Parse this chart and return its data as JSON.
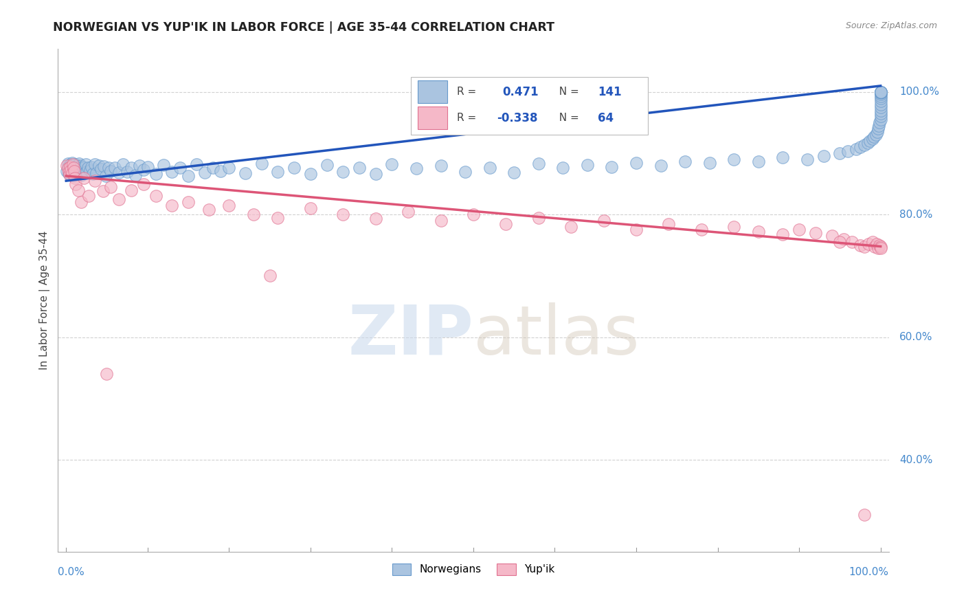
{
  "title": "NORWEGIAN VS YUP'IK IN LABOR FORCE | AGE 35-44 CORRELATION CHART",
  "source": "Source: ZipAtlas.com",
  "ylabel": "In Labor Force | Age 35-44",
  "watermark_zip": "ZIP",
  "watermark_atlas": "atlas",
  "legend_nor_R": "0.471",
  "legend_nor_N": "141",
  "legend_yup_R": "-0.338",
  "legend_yup_N": "64",
  "norwegian_color_edge": "#6699cc",
  "norwegian_color_fill": "#aac4e0",
  "yupik_color_edge": "#e07090",
  "yupik_color_fill": "#f5b8c8",
  "trend_blue": "#2255bb",
  "trend_pink": "#dd5577",
  "background": "#ffffff",
  "grid_color": "#cccccc",
  "title_color": "#222222",
  "axis_label_color": "#4488cc",
  "ylabel_color": "#444444",
  "xlim": [
    0.0,
    1.0
  ],
  "ylim": [
    0.25,
    1.07
  ],
  "y_ticks": [
    0.4,
    0.6,
    0.8,
    1.0
  ],
  "y_tick_labels": [
    "40.0%",
    "60.0%",
    "80.0%",
    "100.0%"
  ],
  "x_tick_labels_left": "0.0%",
  "x_tick_labels_right": "100.0%",
  "blue_line_x0": 0.0,
  "blue_line_x1": 1.0,
  "blue_line_y0": 0.855,
  "blue_line_y1": 1.01,
  "pink_line_x0": 0.0,
  "pink_line_x1": 1.0,
  "pink_line_y0": 0.863,
  "pink_line_y1": 0.748,
  "nor_x": [
    0.001,
    0.002,
    0.002,
    0.003,
    0.003,
    0.003,
    0.004,
    0.004,
    0.004,
    0.005,
    0.005,
    0.005,
    0.006,
    0.006,
    0.006,
    0.006,
    0.007,
    0.007,
    0.007,
    0.008,
    0.008,
    0.008,
    0.009,
    0.009,
    0.009,
    0.01,
    0.01,
    0.01,
    0.011,
    0.011,
    0.012,
    0.012,
    0.013,
    0.013,
    0.014,
    0.014,
    0.015,
    0.015,
    0.016,
    0.016,
    0.017,
    0.017,
    0.018,
    0.018,
    0.019,
    0.02,
    0.021,
    0.022,
    0.023,
    0.024,
    0.025,
    0.027,
    0.029,
    0.031,
    0.033,
    0.035,
    0.037,
    0.04,
    0.043,
    0.046,
    0.049,
    0.052,
    0.055,
    0.06,
    0.065,
    0.07,
    0.075,
    0.08,
    0.085,
    0.09,
    0.095,
    0.1,
    0.11,
    0.12,
    0.13,
    0.14,
    0.15,
    0.16,
    0.17,
    0.18,
    0.19,
    0.2,
    0.22,
    0.24,
    0.26,
    0.28,
    0.3,
    0.32,
    0.34,
    0.36,
    0.38,
    0.4,
    0.43,
    0.46,
    0.49,
    0.52,
    0.55,
    0.58,
    0.61,
    0.64,
    0.67,
    0.7,
    0.73,
    0.76,
    0.79,
    0.82,
    0.85,
    0.88,
    0.91,
    0.93,
    0.95,
    0.96,
    0.97,
    0.975,
    0.98,
    0.984,
    0.987,
    0.99,
    0.992,
    0.994,
    0.996,
    0.997,
    0.998,
    0.999,
    1.0,
    1.0,
    1.0,
    1.0,
    1.0,
    1.0,
    1.0,
    1.0,
    1.0,
    1.0,
    1.0,
    1.0,
    1.0,
    1.0,
    1.0,
    1.0,
    1.0
  ],
  "nor_y": [
    0.871,
    0.883,
    0.876,
    0.868,
    0.88,
    0.875,
    0.872,
    0.879,
    0.866,
    0.874,
    0.881,
    0.869,
    0.877,
    0.873,
    0.865,
    0.882,
    0.87,
    0.878,
    0.884,
    0.867,
    0.875,
    0.871,
    0.879,
    0.863,
    0.876,
    0.872,
    0.88,
    0.868,
    0.874,
    0.882,
    0.866,
    0.878,
    0.87,
    0.876,
    0.864,
    0.88,
    0.872,
    0.879,
    0.866,
    0.883,
    0.87,
    0.876,
    0.864,
    0.88,
    0.873,
    0.878,
    0.871,
    0.876,
    0.868,
    0.882,
    0.87,
    0.876,
    0.872,
    0.878,
    0.866,
    0.882,
    0.868,
    0.88,
    0.874,
    0.879,
    0.863,
    0.877,
    0.871,
    0.876,
    0.869,
    0.882,
    0.87,
    0.876,
    0.864,
    0.88,
    0.873,
    0.878,
    0.866,
    0.881,
    0.87,
    0.876,
    0.863,
    0.882,
    0.869,
    0.877,
    0.871,
    0.876,
    0.868,
    0.883,
    0.87,
    0.876,
    0.866,
    0.881,
    0.87,
    0.877,
    0.866,
    0.882,
    0.875,
    0.88,
    0.87,
    0.876,
    0.869,
    0.883,
    0.876,
    0.881,
    0.878,
    0.884,
    0.88,
    0.887,
    0.884,
    0.89,
    0.887,
    0.893,
    0.89,
    0.895,
    0.9,
    0.903,
    0.907,
    0.91,
    0.913,
    0.917,
    0.92,
    0.923,
    0.927,
    0.93,
    0.935,
    0.94,
    0.945,
    0.95,
    0.955,
    0.96,
    0.965,
    0.97,
    0.975,
    0.98,
    0.985,
    0.99,
    0.993,
    0.996,
    0.999,
    1.0,
    1.0,
    1.0,
    1.0,
    1.0,
    1.0
  ],
  "yup_x": [
    0.001,
    0.002,
    0.003,
    0.004,
    0.005,
    0.006,
    0.007,
    0.008,
    0.009,
    0.01,
    0.011,
    0.012,
    0.015,
    0.018,
    0.022,
    0.028,
    0.035,
    0.045,
    0.055,
    0.065,
    0.08,
    0.095,
    0.11,
    0.13,
    0.15,
    0.175,
    0.2,
    0.23,
    0.26,
    0.3,
    0.34,
    0.38,
    0.42,
    0.46,
    0.5,
    0.54,
    0.58,
    0.62,
    0.66,
    0.7,
    0.74,
    0.78,
    0.82,
    0.85,
    0.88,
    0.9,
    0.92,
    0.94,
    0.955,
    0.965,
    0.975,
    0.98,
    0.985,
    0.99,
    0.993,
    0.995,
    0.997,
    0.999,
    1.0,
    1.0,
    0.05,
    0.25,
    0.95,
    0.98
  ],
  "yup_y": [
    0.88,
    0.875,
    0.87,
    0.865,
    0.878,
    0.872,
    0.868,
    0.882,
    0.876,
    0.871,
    0.86,
    0.85,
    0.84,
    0.82,
    0.86,
    0.83,
    0.855,
    0.838,
    0.845,
    0.825,
    0.84,
    0.85,
    0.83,
    0.815,
    0.82,
    0.808,
    0.815,
    0.8,
    0.795,
    0.81,
    0.8,
    0.793,
    0.805,
    0.79,
    0.8,
    0.785,
    0.795,
    0.78,
    0.79,
    0.776,
    0.785,
    0.775,
    0.78,
    0.772,
    0.768,
    0.775,
    0.77,
    0.765,
    0.76,
    0.755,
    0.75,
    0.748,
    0.752,
    0.755,
    0.748,
    0.752,
    0.745,
    0.75,
    0.748,
    0.745,
    0.54,
    0.7,
    0.755,
    0.31
  ]
}
